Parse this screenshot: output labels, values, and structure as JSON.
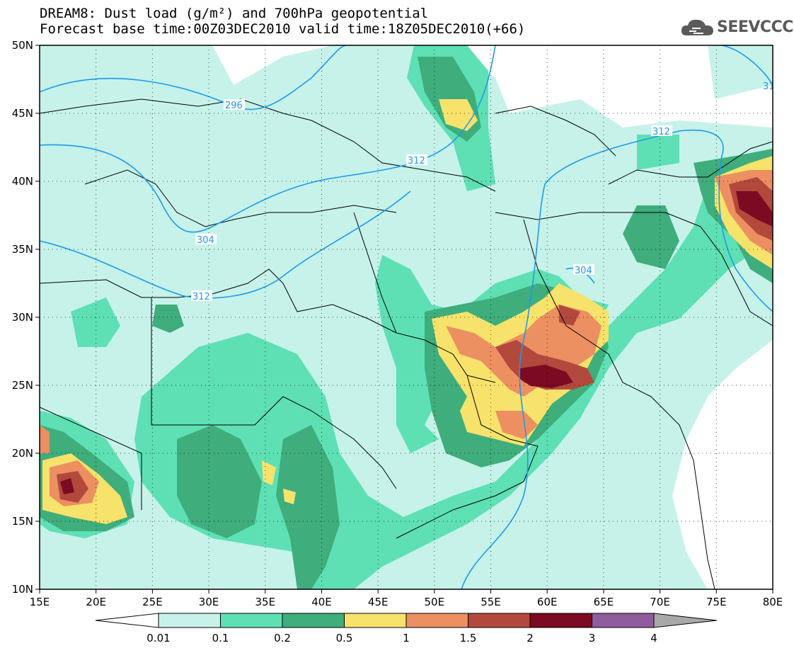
{
  "header": {
    "title_line1": "DREAM8: Dust load (g/m²) and 700hPa geopotential",
    "title_line2": "Forecast base time:00Z03DEC2010 valid time:18Z05DEC2010(+66)",
    "logo_text": "SEEVCCC"
  },
  "map": {
    "lon_labels": [
      "15E",
      "20E",
      "25E",
      "30E",
      "35E",
      "40E",
      "45E",
      "50E",
      "55E",
      "60E",
      "65E",
      "70E",
      "75E",
      "80E"
    ],
    "lat_labels": [
      "50N",
      "45N",
      "40N",
      "35N",
      "30N",
      "25N",
      "20N",
      "15N",
      "10N"
    ],
    "lon_range": [
      15,
      80
    ],
    "lat_range": [
      10,
      50
    ],
    "grid": true,
    "geopotential_color": "#1f9be8",
    "contour_labels": [
      "296",
      "312",
      "304",
      "312",
      "312",
      "304",
      "31"
    ]
  },
  "colorbar": {
    "levels": [
      "0.01",
      "0.1",
      "0.2",
      "0.5",
      "1",
      "1.5",
      "2",
      "3",
      "4"
    ],
    "colors": [
      "#ffffff",
      "#c6f2ea",
      "#5ee0b4",
      "#3fad7c",
      "#f7e36b",
      "#ec8f61",
      "#b3493d",
      "#7b0a22",
      "#8f5c9d",
      "#a8a8a8"
    ]
  }
}
